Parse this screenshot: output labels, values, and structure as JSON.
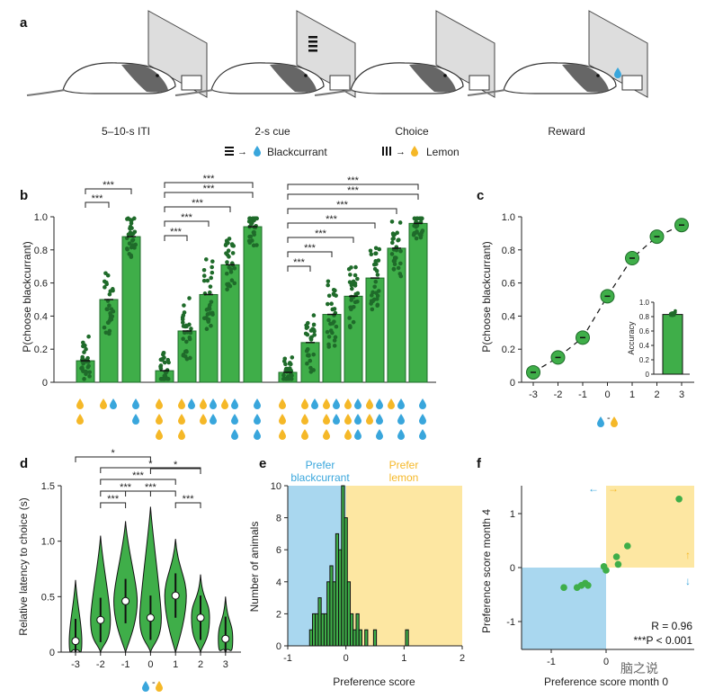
{
  "colors": {
    "green": "#3fae49",
    "green_dark": "#1f6b2a",
    "blue": "#39a6dc",
    "yellow": "#f5b828",
    "blue_bg": "#a9d7ef",
    "yellow_bg": "#fde7a2"
  },
  "panel_a": {
    "label": "a",
    "stages": [
      "5–10-s ITI",
      "2-s cue",
      "Choice",
      "Reward"
    ],
    "legend": {
      "blackcurrant": "Blackcurrant",
      "lemon": "Lemon"
    }
  },
  "panel_b": {
    "label": "b",
    "ylabel": "P(choose blackcurrant)",
    "yticks": [
      "0",
      "0.2",
      "0.4",
      "0.6",
      "0.8",
      "1.0"
    ],
    "sig": "***",
    "groups": [
      {
        "values": [
          0.13,
          0.5,
          0.88
        ]
      },
      {
        "values": [
          0.07,
          0.31,
          0.53,
          0.71,
          0.94
        ]
      },
      {
        "values": [
          0.06,
          0.24,
          0.41,
          0.52,
          0.63,
          0.81,
          0.96
        ]
      }
    ]
  },
  "panel_c": {
    "label": "c",
    "ylabel": "P(choose blackcurrant)",
    "xticks": [
      "-3",
      "-2",
      "-1",
      "0",
      "1",
      "2",
      "3"
    ],
    "yticks": [
      "0",
      "0.2",
      "0.4",
      "0.6",
      "0.8",
      "1.0"
    ],
    "points": [
      {
        "x": -3,
        "y": 0.06
      },
      {
        "x": -2,
        "y": 0.15
      },
      {
        "x": -1,
        "y": 0.27
      },
      {
        "x": 0,
        "y": 0.52
      },
      {
        "x": 1,
        "y": 0.75
      },
      {
        "x": 2,
        "y": 0.88
      },
      {
        "x": 3,
        "y": 0.95
      }
    ],
    "inset": {
      "ylabel": "Accuracy",
      "yticks": [
        "0",
        "0.2",
        "0.4",
        "0.6",
        "0.8",
        "1.0"
      ],
      "value": 0.83
    }
  },
  "panel_d": {
    "label": "d",
    "ylabel": "Relative latency to choice (s)",
    "xticks": [
      "-3",
      "-2",
      "-1",
      "0",
      "1",
      "2",
      "3"
    ],
    "yticks": [
      "0",
      "0.5",
      "1.0",
      "1.5"
    ],
    "medians": [
      0.1,
      0.29,
      0.46,
      0.31,
      0.51,
      0.31,
      0.12
    ],
    "sig_single": "*",
    "sig_triple": "***"
  },
  "panel_e": {
    "label": "e",
    "ylabel": "Number of animals",
    "xlabel": "Preference score",
    "xticks": [
      "-1",
      "0",
      "1",
      "2"
    ],
    "yticks": [
      "0",
      "2",
      "4",
      "6",
      "8",
      "10"
    ],
    "prefer_blue": [
      "Prefer",
      "blackcurrant"
    ],
    "prefer_yellow": [
      "Prefer",
      "lemon"
    ],
    "bins": [
      {
        "x": -0.6,
        "n": 1
      },
      {
        "x": -0.55,
        "n": 2
      },
      {
        "x": -0.5,
        "n": 2
      },
      {
        "x": -0.45,
        "n": 3
      },
      {
        "x": -0.4,
        "n": 2
      },
      {
        "x": -0.35,
        "n": 2
      },
      {
        "x": -0.3,
        "n": 4
      },
      {
        "x": -0.25,
        "n": 5
      },
      {
        "x": -0.2,
        "n": 4
      },
      {
        "x": -0.15,
        "n": 7
      },
      {
        "x": -0.1,
        "n": 6
      },
      {
        "x": -0.05,
        "n": 10
      },
      {
        "x": 0.0,
        "n": 8
      },
      {
        "x": 0.05,
        "n": 4
      },
      {
        "x": 0.1,
        "n": 2
      },
      {
        "x": 0.15,
        "n": 1
      },
      {
        "x": 0.2,
        "n": 2
      },
      {
        "x": 0.25,
        "n": 1
      },
      {
        "x": 0.35,
        "n": 1
      },
      {
        "x": 0.5,
        "n": 1
      },
      {
        "x": 1.05,
        "n": 1
      }
    ]
  },
  "panel_f": {
    "label": "f",
    "ylabel": "Preference score month 4",
    "xlabel": "Preference score month 0",
    "xticks": [
      "-1",
      "0"
    ],
    "yticks": [
      "-1",
      "0",
      "1"
    ],
    "stat_r": "R = 0.96",
    "stat_p": "***P < 0.001",
    "points": [
      {
        "x": -0.77,
        "y": -0.37
      },
      {
        "x": -0.53,
        "y": -0.37
      },
      {
        "x": -0.45,
        "y": -0.33
      },
      {
        "x": -0.38,
        "y": -0.29
      },
      {
        "x": -0.33,
        "y": -0.33
      },
      {
        "x": -0.04,
        "y": 0.02
      },
      {
        "x": 0.0,
        "y": -0.05
      },
      {
        "x": 0.19,
        "y": 0.2
      },
      {
        "x": 0.22,
        "y": 0.06
      },
      {
        "x": 0.39,
        "y": 0.4
      },
      {
        "x": 1.33,
        "y": 1.27
      }
    ]
  },
  "watermark": "脑之说"
}
